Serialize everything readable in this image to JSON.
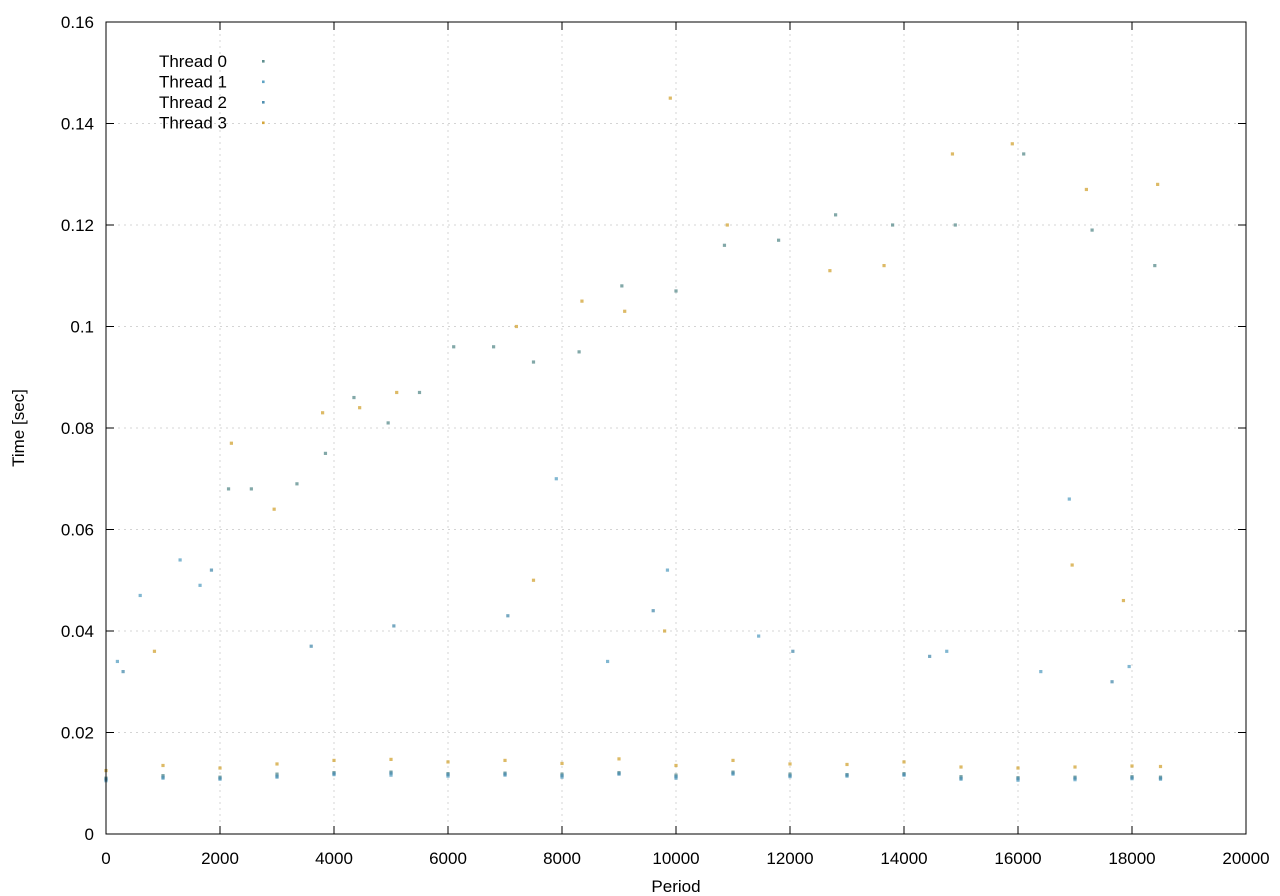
{
  "chart_data": {
    "type": "scatter",
    "title": "",
    "xlabel": "Period",
    "ylabel": "Time [sec]",
    "xlim": [
      0,
      20000
    ],
    "ylim": [
      0,
      0.16
    ],
    "x_ticks": [
      0,
      2000,
      4000,
      6000,
      8000,
      10000,
      12000,
      14000,
      16000,
      18000,
      20000
    ],
    "x_tick_labels": [
      "0",
      "2000",
      "4000",
      "6000",
      "8000",
      "10000",
      "12000",
      "14000",
      "16000",
      "18000",
      "20000"
    ],
    "y_ticks": [
      0,
      0.02,
      0.04,
      0.06,
      0.08,
      0.1,
      0.12,
      0.14,
      0.16
    ],
    "y_tick_labels": [
      "0",
      "0.02",
      "0.04",
      "0.06",
      "0.08",
      "0.1",
      "0.12",
      "0.14",
      "0.16"
    ],
    "grid": true,
    "legend_position": "top-left",
    "series": [
      {
        "name": "Thread 0",
        "color": "#5f8f8f",
        "points": [
          [
            0,
            0.011
          ],
          [
            1000,
            0.0115
          ],
          [
            2000,
            0.0112
          ],
          [
            3000,
            0.0118
          ],
          [
            4000,
            0.0121
          ],
          [
            5000,
            0.0122
          ],
          [
            6000,
            0.0119
          ],
          [
            7000,
            0.012
          ],
          [
            8000,
            0.0118
          ],
          [
            9000,
            0.0121
          ],
          [
            10000,
            0.0116
          ],
          [
            11000,
            0.0122
          ],
          [
            12000,
            0.0118
          ],
          [
            13000,
            0.0117
          ],
          [
            14000,
            0.0119
          ],
          [
            15000,
            0.0113
          ],
          [
            16000,
            0.0111
          ],
          [
            17000,
            0.0112
          ],
          [
            18000,
            0.0113
          ],
          [
            18500,
            0.0112
          ],
          [
            2150,
            0.068
          ],
          [
            2550,
            0.068
          ],
          [
            3350,
            0.069
          ],
          [
            3850,
            0.075
          ],
          [
            4350,
            0.086
          ],
          [
            4950,
            0.081
          ],
          [
            5500,
            0.087
          ],
          [
            6100,
            0.096
          ],
          [
            6800,
            0.096
          ],
          [
            7500,
            0.093
          ],
          [
            8300,
            0.095
          ],
          [
            9050,
            0.108
          ],
          [
            10000,
            0.107
          ],
          [
            10850,
            0.116
          ],
          [
            11800,
            0.117
          ],
          [
            12800,
            0.122
          ],
          [
            13800,
            0.12
          ],
          [
            14900,
            0.12
          ],
          [
            16100,
            0.134
          ],
          [
            17300,
            0.119
          ],
          [
            18400,
            0.112
          ]
        ]
      },
      {
        "name": "Thread 1",
        "color": "#5ea3c4",
        "points": [
          [
            0,
            0.0105
          ],
          [
            1000,
            0.011
          ],
          [
            2000,
            0.0108
          ],
          [
            3000,
            0.0112
          ],
          [
            4000,
            0.0117
          ],
          [
            5000,
            0.0116
          ],
          [
            6000,
            0.0114
          ],
          [
            7000,
            0.0116
          ],
          [
            8000,
            0.0112
          ],
          [
            9000,
            0.0118
          ],
          [
            10000,
            0.011
          ],
          [
            11000,
            0.0118
          ],
          [
            12000,
            0.0113
          ],
          [
            13000,
            0.0114
          ],
          [
            14000,
            0.0116
          ],
          [
            15000,
            0.0108
          ],
          [
            16000,
            0.0106
          ],
          [
            17000,
            0.0107
          ],
          [
            18000,
            0.0109
          ],
          [
            18500,
            0.0108
          ],
          [
            200,
            0.034
          ],
          [
            600,
            0.047
          ],
          [
            1300,
            0.054
          ],
          [
            1650,
            0.049
          ],
          [
            7900,
            0.07
          ],
          [
            9850,
            0.052
          ],
          [
            11450,
            0.039
          ],
          [
            14750,
            0.036
          ],
          [
            16400,
            0.032
          ],
          [
            17950,
            0.033
          ],
          [
            8800,
            0.034
          ],
          [
            16900,
            0.066
          ]
        ]
      },
      {
        "name": "Thread 2",
        "color": "#4f8fb0",
        "points": [
          [
            0,
            0.0108
          ],
          [
            1000,
            0.0112
          ],
          [
            2000,
            0.011
          ],
          [
            3000,
            0.0114
          ],
          [
            4000,
            0.0119
          ],
          [
            5000,
            0.012
          ],
          [
            6000,
            0.0117
          ],
          [
            7000,
            0.0118
          ],
          [
            8000,
            0.0115
          ],
          [
            9000,
            0.0119
          ],
          [
            10000,
            0.0113
          ],
          [
            11000,
            0.012
          ],
          [
            12000,
            0.0115
          ],
          [
            13000,
            0.0116
          ],
          [
            14000,
            0.0117
          ],
          [
            15000,
            0.011
          ],
          [
            16000,
            0.0109
          ],
          [
            17000,
            0.011
          ],
          [
            18000,
            0.0111
          ],
          [
            18500,
            0.011
          ],
          [
            300,
            0.032
          ],
          [
            1850,
            0.052
          ],
          [
            3600,
            0.037
          ],
          [
            5050,
            0.041
          ],
          [
            7050,
            0.043
          ],
          [
            9600,
            0.044
          ],
          [
            12050,
            0.036
          ],
          [
            14450,
            0.035
          ],
          [
            17650,
            0.03
          ]
        ]
      },
      {
        "name": "Thread 3",
        "color": "#d4a63b",
        "points": [
          [
            0,
            0.0125
          ],
          [
            1000,
            0.0135
          ],
          [
            2000,
            0.013
          ],
          [
            3000,
            0.0138
          ],
          [
            4000,
            0.0145
          ],
          [
            5000,
            0.0147
          ],
          [
            6000,
            0.0142
          ],
          [
            7000,
            0.0145
          ],
          [
            8000,
            0.0139
          ],
          [
            9000,
            0.0148
          ],
          [
            10000,
            0.0135
          ],
          [
            11000,
            0.0145
          ],
          [
            12000,
            0.0138
          ],
          [
            13000,
            0.0137
          ],
          [
            14000,
            0.0142
          ],
          [
            15000,
            0.0132
          ],
          [
            16000,
            0.013
          ],
          [
            17000,
            0.0132
          ],
          [
            18000,
            0.0134
          ],
          [
            18500,
            0.0133
          ],
          [
            850,
            0.036
          ],
          [
            2200,
            0.077
          ],
          [
            2950,
            0.064
          ],
          [
            3800,
            0.083
          ],
          [
            4450,
            0.084
          ],
          [
            5100,
            0.087
          ],
          [
            7200,
            0.1
          ],
          [
            8350,
            0.105
          ],
          [
            9100,
            0.103
          ],
          [
            9900,
            0.145
          ],
          [
            10900,
            0.12
          ],
          [
            12700,
            0.111
          ],
          [
            13650,
            0.112
          ],
          [
            14850,
            0.134
          ],
          [
            15900,
            0.136
          ],
          [
            17200,
            0.127
          ],
          [
            18450,
            0.128
          ],
          [
            7500,
            0.05
          ],
          [
            9800,
            0.04
          ],
          [
            16950,
            0.053
          ],
          [
            17850,
            0.046
          ]
        ]
      }
    ]
  }
}
